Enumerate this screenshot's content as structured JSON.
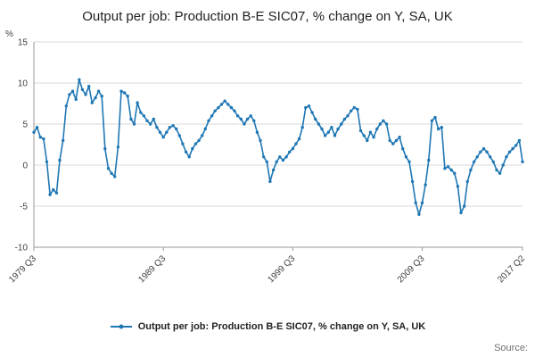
{
  "header": {
    "title": "Output per job: Production B-E SIC07, % change on Y, SA, UK"
  },
  "legend": {
    "label": "Output per job: Production B-E SIC07, % change on Y, SA, UK"
  },
  "footer": {
    "source_label": "Source:"
  },
  "colors": {
    "line": "#1f77b4",
    "grid": "#d9d9d9",
    "axis": "#9a9a9a",
    "tick_text": "#404040",
    "title_text": "#222222",
    "source_text": "#707070"
  },
  "chart_data": {
    "type": "line",
    "title": "Output per job: Production B-E SIC07, % change on Y, SA, UK",
    "xlabel": "",
    "ylabel": "%",
    "ylim": [
      -10,
      15
    ],
    "yticks": [
      15,
      10,
      5,
      0,
      -5,
      -10
    ],
    "grid": true,
    "legend_position": "bottom",
    "x_start": "1979 Q3",
    "x_end": "2017 Q2",
    "frequency": "quarterly",
    "xtick_labels": [
      "1979 Q3",
      "1989 Q3",
      "1999 Q3",
      "2009 Q3",
      "2017 Q2"
    ],
    "xtick_indices": [
      0,
      40,
      80,
      120,
      151
    ],
    "series": [
      {
        "name": "Output per job: Production B-E SIC07, % change on Y, SA, UK",
        "color": "#1f77b4",
        "values": [
          4.0,
          4.6,
          3.4,
          3.2,
          0.4,
          -3.6,
          -3.0,
          -3.4,
          0.6,
          3.0,
          7.2,
          8.6,
          9.0,
          8.0,
          10.4,
          9.2,
          8.6,
          9.6,
          7.6,
          8.2,
          9.0,
          8.4,
          2.0,
          -0.4,
          -1.0,
          -1.4,
          2.2,
          9.0,
          8.8,
          8.4,
          5.6,
          5.0,
          7.6,
          6.4,
          6.0,
          5.4,
          5.0,
          5.6,
          4.6,
          4.0,
          3.4,
          4.0,
          4.6,
          4.8,
          4.4,
          3.6,
          2.6,
          1.6,
          1.0,
          2.0,
          2.6,
          3.0,
          3.6,
          4.4,
          5.4,
          6.0,
          6.6,
          7.0,
          7.4,
          7.8,
          7.4,
          7.0,
          6.6,
          6.0,
          5.6,
          5.0,
          5.6,
          6.0,
          5.4,
          4.0,
          3.0,
          1.0,
          0.4,
          -2.0,
          -0.6,
          0.4,
          1.0,
          0.6,
          1.0,
          1.6,
          2.0,
          2.6,
          3.2,
          4.6,
          7.0,
          7.2,
          6.4,
          5.6,
          5.0,
          4.4,
          3.6,
          4.0,
          4.6,
          3.6,
          4.4,
          5.0,
          5.6,
          6.0,
          6.6,
          7.0,
          6.8,
          4.2,
          3.6,
          3.0,
          4.0,
          3.4,
          4.4,
          5.0,
          5.4,
          5.0,
          3.0,
          2.6,
          3.0,
          3.4,
          2.0,
          1.0,
          0.4,
          -2.0,
          -4.6,
          -6.0,
          -4.6,
          -2.4,
          0.6,
          5.4,
          5.8,
          4.4,
          4.6,
          -0.4,
          -0.2,
          -0.6,
          -1.0,
          -2.6,
          -5.8,
          -5.0,
          -2.0,
          -0.6,
          0.4,
          1.0,
          1.6,
          2.0,
          1.6,
          1.0,
          0.4,
          -0.6,
          -1.0,
          0.0,
          1.0,
          1.6,
          2.0,
          2.4,
          3.0,
          0.4
        ]
      }
    ]
  }
}
